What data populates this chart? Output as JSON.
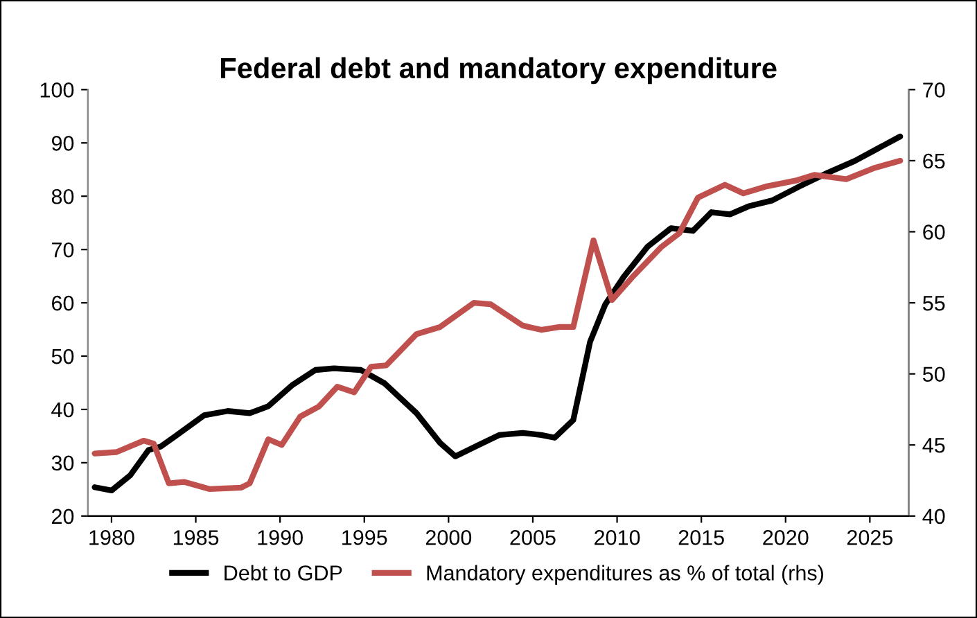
{
  "chart_data": {
    "type": "line",
    "title": "Federal debt and mandatory expenditure",
    "legend": "bottom",
    "grid": false,
    "xlim": [
      1978.6,
      2027.3
    ],
    "xticks": [
      1980,
      1985,
      1990,
      1995,
      2000,
      2005,
      2010,
      2015,
      2020,
      2025
    ],
    "ylim": [
      20,
      100
    ],
    "yticks": [
      20,
      30,
      40,
      50,
      60,
      70,
      80,
      90,
      100
    ],
    "y2lim": [
      40,
      70
    ],
    "y2ticks": [
      40,
      45,
      50,
      55,
      60,
      65,
      70
    ],
    "series": [
      {
        "name": "Debt to GDP",
        "color": "#000000",
        "x": [
          1979.0,
          1980.0,
          1981.1,
          1982.2,
          1982.9,
          1983.8,
          1985.5,
          1986.9,
          1988.2,
          1989.3,
          1990.7,
          1992.1,
          1993.2,
          1994.8,
          1996.2,
          1998.1,
          1999.5,
          2000.4,
          2001.7,
          2003.0,
          2004.4,
          2005.5,
          2006.3,
          2007.4,
          2008.4,
          2009.3,
          2010.4,
          2011.8,
          2013.2,
          2014.5,
          2015.6,
          2016.7,
          2017.8,
          2019.2,
          2020.8,
          2022.5,
          2024.1,
          2025.5,
          2026.8
        ],
        "values": [
          25.4,
          24.8,
          27.6,
          32.4,
          33.0,
          35.0,
          38.9,
          39.7,
          39.3,
          40.6,
          44.5,
          47.4,
          47.7,
          47.4,
          44.9,
          39.3,
          33.7,
          31.2,
          33.2,
          35.2,
          35.6,
          35.2,
          34.7,
          38.0,
          52.7,
          59.7,
          64.9,
          70.5,
          74.0,
          73.5,
          77.0,
          76.6,
          78.1,
          79.2,
          81.8,
          84.4,
          86.6,
          89.0,
          91.2
        ]
      },
      {
        "name": "Mandatory expenditures as % of total (rhs)",
        "color": "#c0504d",
        "axis": "y2",
        "x": [
          1979.0,
          1980.3,
          1981.9,
          1982.5,
          1983.4,
          1984.3,
          1985.8,
          1987.7,
          1988.2,
          1989.3,
          1990.1,
          1991.2,
          1992.3,
          1993.4,
          1994.4,
          1995.4,
          1996.3,
          1998.1,
          1999.5,
          2001.5,
          2002.5,
          2004.4,
          2005.5,
          2006.6,
          2007.4,
          2008.6,
          2009.7,
          2010.9,
          2012.6,
          2013.7,
          2014.8,
          2016.4,
          2017.5,
          2018.9,
          2020.6,
          2021.7,
          2023.6,
          2025.3,
          2026.8
        ],
        "values": [
          44.4,
          44.5,
          45.3,
          45.1,
          42.3,
          42.4,
          41.9,
          42.0,
          42.3,
          45.4,
          45.0,
          47.0,
          47.7,
          49.1,
          48.7,
          50.5,
          50.6,
          52.8,
          53.3,
          55.0,
          54.9,
          53.4,
          53.1,
          53.3,
          53.3,
          59.4,
          55.2,
          56.8,
          58.9,
          59.9,
          62.4,
          63.3,
          62.7,
          63.2,
          63.6,
          64.0,
          63.7,
          64.5,
          65.0
        ]
      }
    ]
  }
}
